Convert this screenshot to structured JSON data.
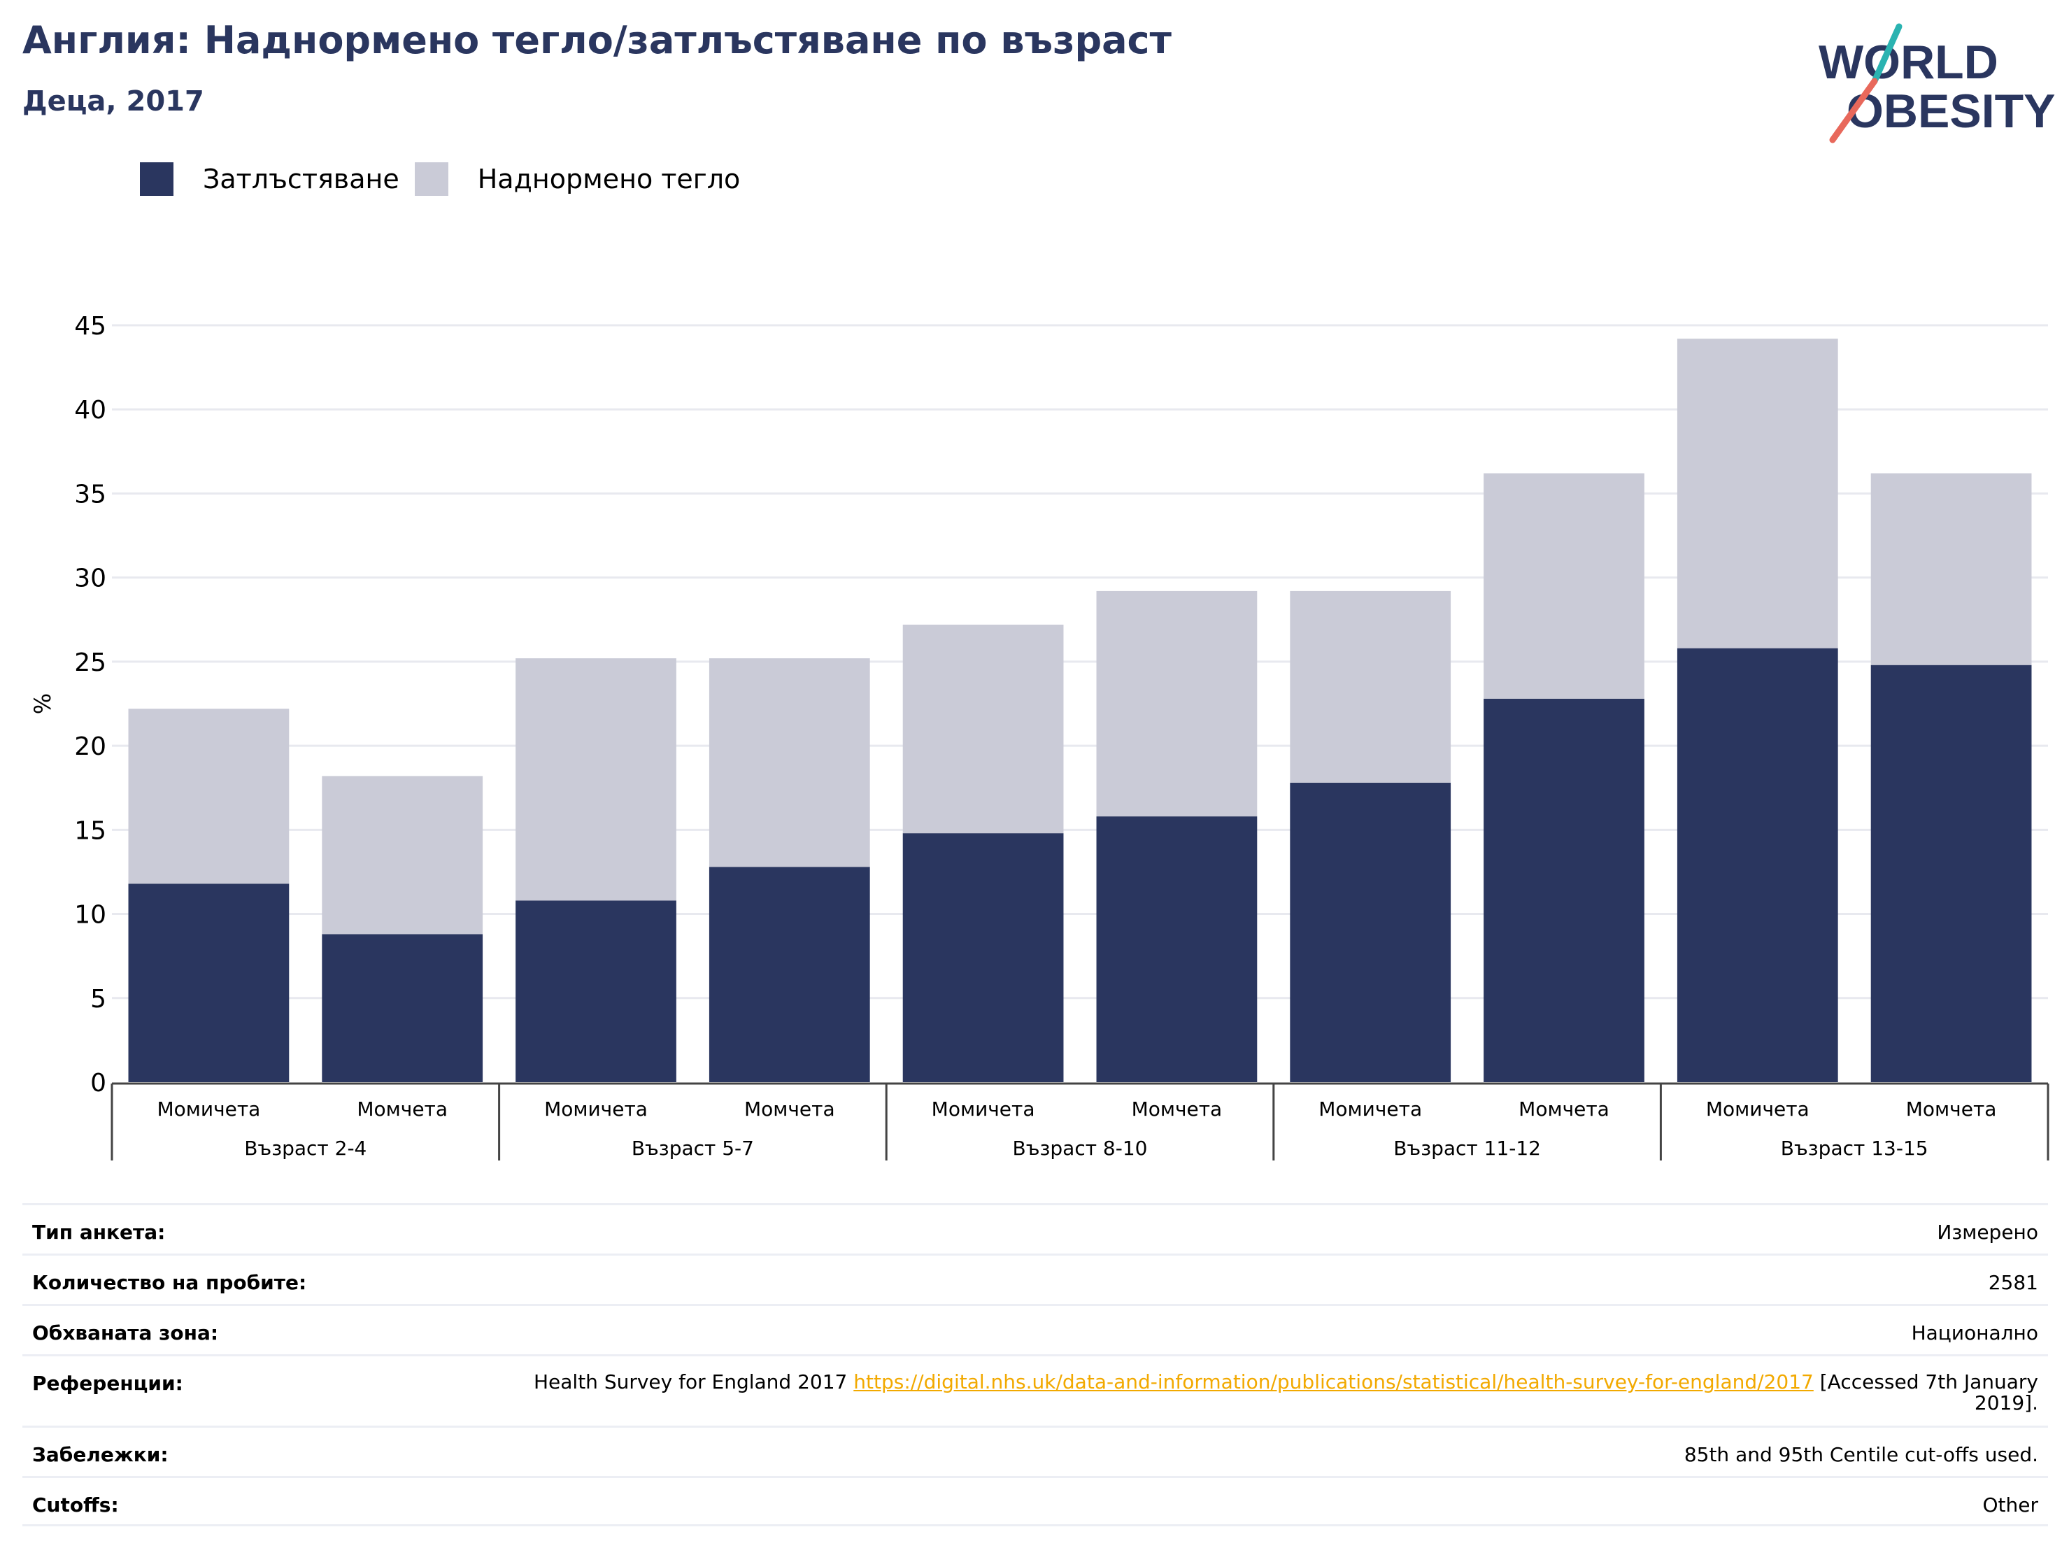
{
  "header": {
    "title": "Англия: Наднормено тегло/затлъстяване по възраст",
    "subtitle": "Деца, 2017",
    "logo_line1": "WORLD",
    "logo_line2": "OBESITY"
  },
  "legend": {
    "items": [
      {
        "label": "Затлъстяване",
        "color": "#2a365f"
      },
      {
        "label": "Наднормено тегло",
        "color": "#cacbd7"
      }
    ]
  },
  "chart_data": {
    "type": "bar",
    "stacked": true,
    "ylabel": "%",
    "ylim": [
      0,
      45
    ],
    "yticks": [
      0,
      5,
      10,
      15,
      20,
      25,
      30,
      35,
      40,
      45
    ],
    "grid": true,
    "legend_position": "top-left",
    "groups": [
      "Възраст 2-4",
      "Възраст 5-7",
      "Възраст 8-10",
      "Възраст 11-12",
      "Възраст 13-15"
    ],
    "categories": [
      "Момичета",
      "Момчета",
      "Момичета",
      "Момчета",
      "Момичета",
      "Момчета",
      "Момичета",
      "Момчета",
      "Момичета",
      "Момчета"
    ],
    "series": [
      {
        "name": "Затлъстяване",
        "color": "#2a365f",
        "values": [
          11.8,
          8.8,
          10.8,
          12.8,
          14.8,
          15.8,
          17.8,
          22.8,
          25.8,
          24.8
        ]
      },
      {
        "name": "Наднормено тегло",
        "color": "#cacbd7",
        "values": [
          10.4,
          9.4,
          14.4,
          12.4,
          12.4,
          13.4,
          11.4,
          13.4,
          18.4,
          11.4
        ]
      }
    ]
  },
  "info": {
    "rows": [
      {
        "label": "Тип анкета:",
        "value": "Измерено"
      },
      {
        "label": "Количество на пробите:",
        "value": "2581"
      },
      {
        "label": "Обхваната зона:",
        "value": "Национално"
      },
      {
        "label": "Забележки:",
        "value": "85th and 95th Centile cut-offs used."
      },
      {
        "label": "Cutoffs:",
        "value": "Other"
      }
    ],
    "reference": {
      "label": "Референции:",
      "text_before": "Health Survey for England 2017",
      "link": "https://digital.nhs.uk/data-and-information/publications/statistical/health-survey-for-england/2017",
      "text_after": "[Accessed 7th January 2019]."
    }
  }
}
